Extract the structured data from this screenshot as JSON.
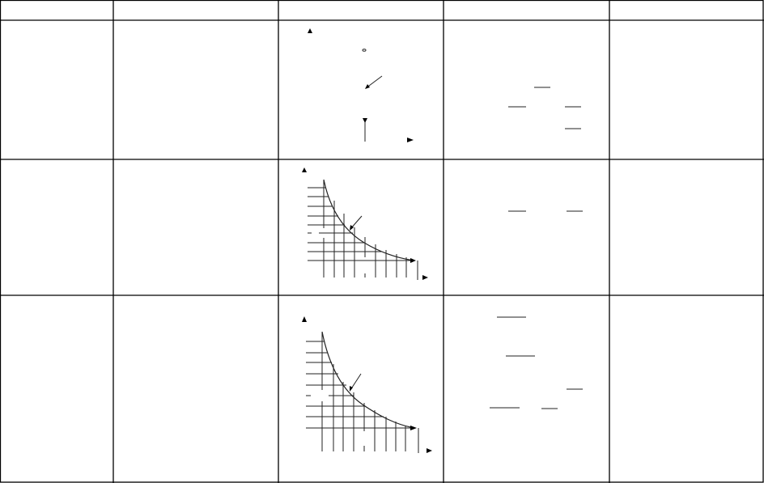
{
  "table": {
    "header": [
      "",
      "",
      "",
      "",
      ""
    ],
    "rows": [
      [
        "",
        "",
        "",
        "",
        ""
      ],
      [
        "",
        "",
        "",
        "",
        ""
      ],
      [
        "",
        "",
        "",
        "",
        ""
      ]
    ]
  }
}
